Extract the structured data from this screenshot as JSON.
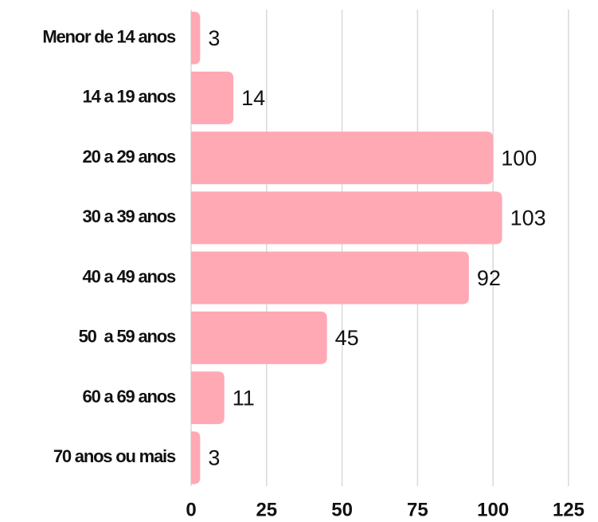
{
  "chart_data": {
    "type": "bar",
    "orientation": "horizontal",
    "categories": [
      "Menor de 14 anos",
      "14 a 19 anos",
      "20 a 29 anos",
      "30 a 39 anos",
      "40 a 49 anos",
      "50  a 59 anos",
      "60 a 69 anos",
      "70 anos ou mais"
    ],
    "values": [
      3,
      14,
      100,
      103,
      92,
      45,
      11,
      3
    ],
    "color": "#ffa9b5",
    "xlim": [
      0,
      125
    ],
    "xticks": [
      0,
      25,
      50,
      75,
      100,
      125
    ],
    "grid": true
  }
}
